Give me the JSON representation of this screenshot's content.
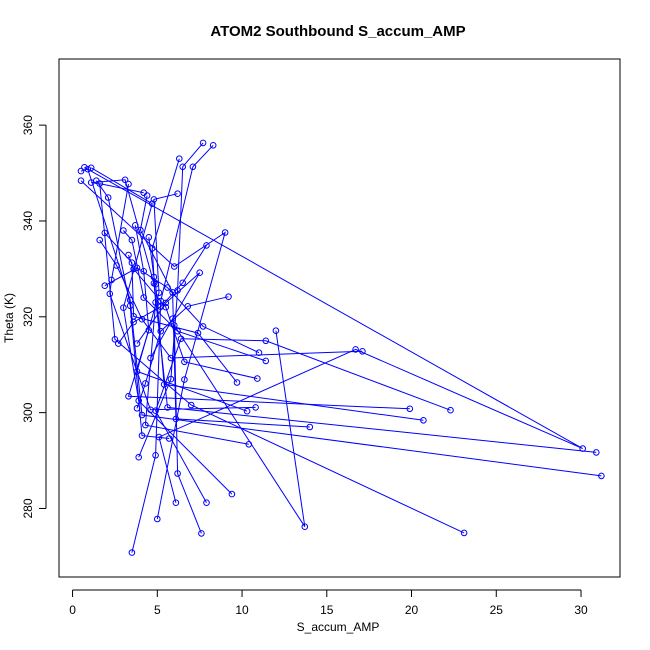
{
  "chart_data": {
    "type": "line",
    "title": "ATOM2 Southbound S_accum_AMP",
    "xlabel": "S_accum_AMP",
    "ylabel": "Theta (K)",
    "xlim": [
      -0.8,
      32.3
    ],
    "ylim": [
      265.7,
      373.8
    ],
    "xticks": [
      0,
      5,
      10,
      15,
      20,
      25,
      30
    ],
    "yticks": [
      280,
      300,
      320,
      340,
      360
    ],
    "grid": false,
    "legend": "none",
    "marker": "open-circle",
    "color": "#0000ff",
    "series": [
      {
        "x": [
          3.5,
          4.9,
          5.2,
          7.1,
          8.3
        ],
        "y": [
          270.8,
          291.1,
          323.3,
          351.3,
          355.8
        ]
      },
      {
        "x": [
          7.6,
          6.2,
          6.0,
          13.7,
          12.0
        ],
        "y": [
          274.8,
          287.3,
          318.2,
          276.2,
          317.1
        ]
      },
      {
        "x": [
          23.1,
          7.0,
          2.5,
          1.6,
          4.2
        ],
        "y": [
          274.9,
          301.6,
          315.3,
          347.8,
          345.9
        ]
      },
      {
        "x": [
          5.0,
          6.6,
          9.0,
          6.0,
          0.5
        ],
        "y": [
          277.8,
          306.9,
          337.6,
          330.5,
          348.4
        ]
      },
      {
        "x": [
          6.1,
          5.1,
          16.7,
          30.1,
          0.7
        ],
        "y": [
          281.2,
          294.9,
          313.2,
          292.5,
          351.2
        ]
      },
      {
        "x": [
          7.9,
          4.9,
          6.4,
          11.4,
          22.3
        ],
        "y": [
          281.2,
          300.4,
          315.4,
          315.0,
          300.5
        ]
      },
      {
        "x": [
          9.4,
          3.9,
          3.0,
          4.7,
          1.1
        ],
        "y": [
          283.0,
          302.5,
          321.9,
          343.6,
          351.1
        ]
      },
      {
        "x": [
          31.2,
          4.1,
          3.4,
          0.9,
          0.5
        ],
        "y": [
          286.8,
          299.5,
          323.5,
          350.8,
          350.4
        ]
      },
      {
        "x": [
          3.9,
          5.8,
          6.2,
          6.5,
          7.7
        ],
        "y": [
          290.7,
          307.0,
          325.5,
          351.3,
          356.3
        ]
      },
      {
        "x": [
          30.9,
          5.6,
          4.8,
          3.1,
          1.1
        ],
        "y": [
          291.7,
          301.1,
          327.0,
          348.6,
          348.0
        ]
      },
      {
        "x": [
          10.4,
          4.3,
          4.9,
          4.7,
          6.3
        ],
        "y": [
          293.4,
          297.4,
          323.0,
          334.3,
          353.0
        ]
      },
      {
        "x": [
          5.7,
          4.1,
          3.4,
          2.1,
          1.4
        ],
        "y": [
          294.6,
          295.2,
          322.3,
          344.9,
          348.4
        ]
      },
      {
        "x": [
          14.0,
          6.1,
          5.9,
          4.0,
          4.4
        ],
        "y": [
          297.0,
          298.7,
          325.1,
          338.1,
          345.3
        ]
      },
      {
        "x": [
          20.7,
          5.4,
          4.9,
          4.8,
          4.5
        ],
        "y": [
          298.4,
          305.9,
          326.8,
          328.3,
          336.6
        ]
      },
      {
        "x": [
          10.8,
          4.6,
          2.2,
          2.3,
          3.3
        ],
        "y": [
          301.1,
          300.6,
          324.8,
          327.7,
          347.7
        ]
      },
      {
        "x": [
          19.9,
          3.3,
          4.5,
          4.2,
          3.7
        ],
        "y": [
          300.8,
          303.4,
          317.2,
          329.5,
          339.1
        ]
      },
      {
        "x": [
          10.3,
          3.8,
          5.1,
          4.8,
          6.2
        ],
        "y": [
          300.3,
          308.6,
          325.0,
          344.5,
          345.7
        ]
      },
      {
        "x": [
          9.7,
          7.4,
          3.6,
          3.5,
          1.9
        ],
        "y": [
          306.3,
          316.6,
          320.1,
          331.3,
          337.5
        ]
      },
      {
        "x": [
          10.9,
          6.6,
          5.5,
          3.6,
          3.3
        ],
        "y": [
          307.1,
          310.6,
          322.0,
          330.0,
          332.9
        ]
      },
      {
        "x": [
          11.4,
          6.2,
          4.2,
          3.5,
          3.0
        ],
        "y": [
          310.8,
          317.0,
          324.0,
          336.0,
          338.0
        ]
      },
      {
        "x": [
          17.1,
          5.8,
          4.1,
          2.6,
          1.6
        ],
        "y": [
          312.8,
          311.4,
          319.5,
          330.7,
          336.0
        ]
      },
      {
        "x": [
          11.0,
          7.7,
          5.6,
          3.8,
          1.9
        ],
        "y": [
          312.5,
          318.0,
          326.1,
          330.2,
          326.5
        ]
      },
      {
        "x": [
          4.6,
          5.9,
          7.5,
          5.5,
          3.8
        ],
        "y": [
          311.4,
          319.6,
          329.2,
          322.9,
          314.4
        ]
      },
      {
        "x": [
          2.7,
          3.6,
          5.2,
          6.5,
          7.9
        ],
        "y": [
          314.4,
          318.9,
          322.1,
          327.1,
          334.9
        ]
      },
      {
        "x": [
          3.8,
          4.3,
          5.2,
          6.8,
          9.2
        ],
        "y": [
          300.9,
          306.1,
          317.0,
          322.2,
          324.2
        ]
      }
    ]
  }
}
